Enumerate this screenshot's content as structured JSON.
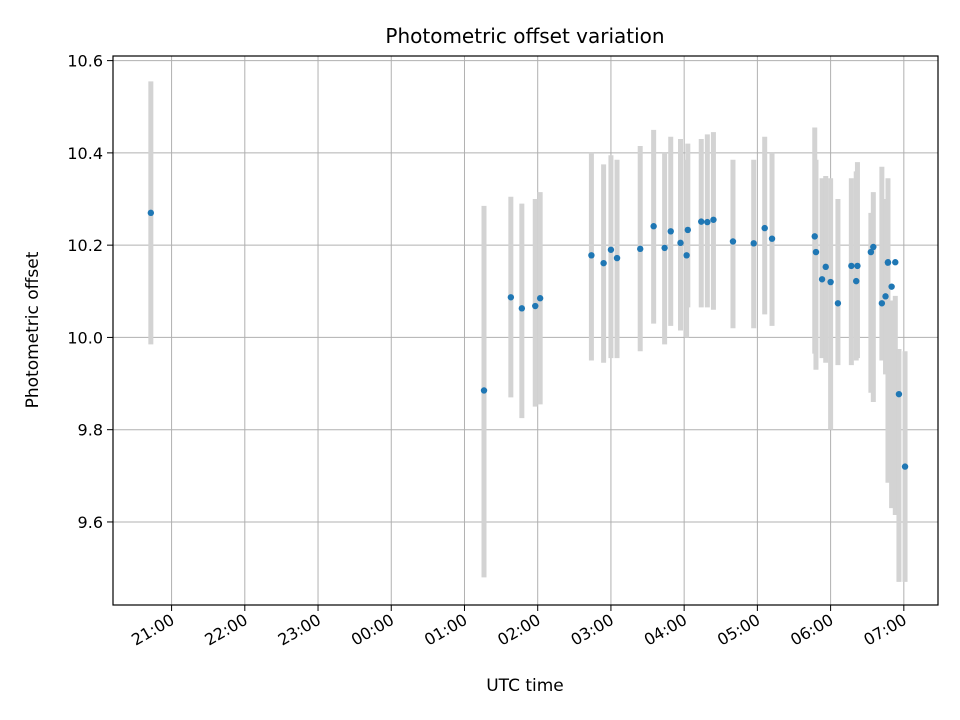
{
  "chart_data": {
    "type": "scatter",
    "title": "Photometric offset variation",
    "xlabel": "UTC time",
    "ylabel": "Photometric offset",
    "x_axis_type": "time",
    "x_ticks": [
      "21:00",
      "22:00",
      "23:00",
      "00:00",
      "01:00",
      "02:00",
      "03:00",
      "04:00",
      "05:00",
      "06:00",
      "07:00"
    ],
    "y_ticks": [
      9.6,
      9.8,
      10.0,
      10.2,
      10.4,
      10.6
    ],
    "xlim": [
      "20:12",
      "07:28"
    ],
    "ylim": [
      9.42,
      10.61
    ],
    "grid": true,
    "error_bar_color": "#d3d3d3",
    "point_color": "#1f77b4",
    "series": [
      {
        "x": [
          "20:43",
          "01:16",
          "01:38",
          "01:47",
          "01:58",
          "02:02",
          "02:44",
          "02:54",
          "03:00",
          "03:05",
          "03:24",
          "03:35",
          "03:44",
          "03:49",
          "03:57",
          "04:02",
          "04:03",
          "04:14",
          "04:19",
          "04:24",
          "04:40",
          "04:57",
          "05:06",
          "05:12",
          "05:47",
          "05:48",
          "05:53",
          "05:56",
          "06:00",
          "06:06",
          "06:17",
          "06:21",
          "06:22",
          "06:33",
          "06:35",
          "06:42",
          "06:45",
          "06:47",
          "06:47",
          "06:50",
          "06:53",
          "06:56",
          "07:01"
        ],
        "y": [
          10.27,
          9.885,
          10.087,
          10.063,
          10.068,
          10.085,
          10.178,
          10.161,
          10.19,
          10.172,
          10.192,
          10.241,
          10.194,
          10.23,
          10.205,
          10.178,
          10.233,
          10.251,
          10.25,
          10.255,
          10.208,
          10.204,
          10.237,
          10.214,
          10.219,
          10.185,
          10.126,
          10.153,
          10.12,
          10.074,
          10.155,
          10.122,
          10.155,
          10.185,
          10.196,
          10.074,
          10.089,
          10.162,
          10.163,
          10.11,
          10.163,
          9.877,
          9.72
        ],
        "err_lo": [
          9.985,
          9.48,
          9.87,
          9.825,
          9.85,
          9.855,
          9.95,
          9.945,
          9.955,
          9.955,
          9.97,
          10.03,
          9.985,
          10.025,
          10.015,
          10.0,
          10.065,
          10.065,
          10.065,
          10.06,
          10.02,
          10.02,
          10.05,
          10.025,
          9.965,
          9.93,
          9.955,
          9.945,
          9.8,
          9.94,
          9.94,
          9.95,
          9.955,
          9.88,
          9.86,
          9.95,
          9.92,
          9.98,
          9.685,
          9.63,
          9.615,
          9.47,
          9.47
        ],
        "err_hi": [
          10.555,
          10.285,
          10.305,
          10.29,
          10.3,
          10.315,
          10.4,
          10.375,
          10.395,
          10.385,
          10.415,
          10.45,
          10.4,
          10.435,
          10.43,
          10.385,
          10.42,
          10.43,
          10.44,
          10.445,
          10.385,
          10.385,
          10.435,
          10.4,
          10.455,
          10.385,
          10.345,
          10.35,
          10.345,
          10.3,
          10.345,
          10.36,
          10.38,
          10.27,
          10.315,
          10.37,
          10.3,
          10.345,
          10.07,
          10.08,
          10.09,
          9.975,
          9.97
        ]
      }
    ]
  }
}
